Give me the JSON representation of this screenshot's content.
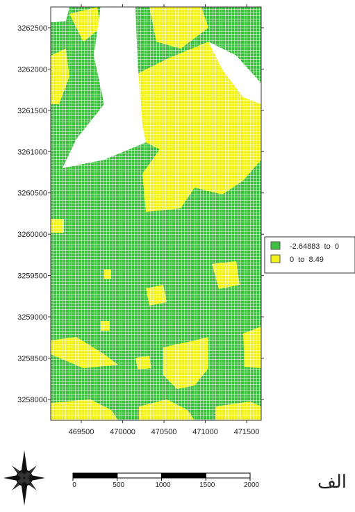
{
  "map": {
    "xlim": [
      469130,
      471676
    ],
    "ylim": [
      3257747,
      3262752
    ],
    "xticks": [
      469500,
      470000,
      470500,
      471000,
      471500
    ],
    "yticks": [
      3258000,
      3258500,
      3259000,
      3259500,
      3260000,
      3260500,
      3261000,
      3261500,
      3262000,
      3262500
    ],
    "legend": [
      {
        "label": "-2.64883  to  0",
        "color": "#3fbf3f"
      },
      {
        "label": "0  to  8.49",
        "color": "#f2f21a"
      }
    ],
    "scale_bar": {
      "ticks": [
        0,
        500,
        1000,
        1500,
        2000
      ]
    },
    "caption": "الف"
  }
}
